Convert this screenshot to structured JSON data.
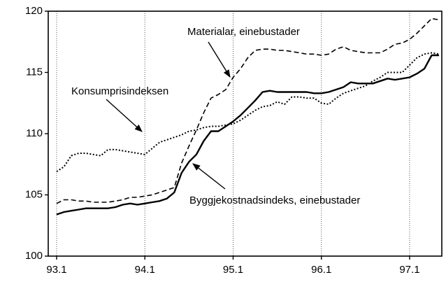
{
  "chart_data": {
    "type": "line",
    "categories": [
      "93.1",
      null,
      null,
      null,
      null,
      null,
      null,
      null,
      null,
      null,
      null,
      null,
      "94.1",
      null,
      null,
      null,
      null,
      null,
      null,
      null,
      null,
      null,
      null,
      null,
      "95.1",
      null,
      null,
      null,
      null,
      null,
      null,
      null,
      null,
      null,
      null,
      null,
      "96.1",
      null,
      null,
      null,
      null,
      null,
      null,
      null,
      null,
      null,
      null,
      null,
      "97.1",
      null,
      null,
      null,
      null
    ],
    "series": [
      {
        "name": "Byggjekostnadsindeks, einebustader",
        "color": "#000000",
        "style": "solid",
        "values": [
          103.4,
          103.6,
          103.7,
          103.8,
          103.9,
          103.9,
          103.9,
          103.9,
          104.0,
          104.2,
          104.3,
          104.2,
          104.3,
          104.4,
          104.5,
          104.7,
          105.2,
          106.8,
          107.7,
          108.3,
          109.4,
          110.2,
          110.2,
          110.6,
          111.0,
          111.5,
          112.1,
          112.7,
          113.4,
          113.5,
          113.4,
          113.4,
          113.4,
          113.4,
          113.4,
          113.3,
          113.3,
          113.4,
          113.6,
          113.8,
          114.2,
          114.1,
          114.1,
          114.1,
          114.3,
          114.5,
          114.4,
          114.5,
          114.6,
          114.9,
          115.3,
          116.4,
          116.4
        ]
      },
      {
        "name": "Materialar, einebustader",
        "color": "#000000",
        "style": "dashed",
        "values": [
          104.3,
          104.6,
          104.6,
          104.5,
          104.5,
          104.4,
          104.4,
          104.4,
          104.5,
          104.6,
          104.8,
          104.8,
          104.9,
          105.0,
          105.2,
          105.4,
          105.6,
          107.6,
          109.0,
          110.3,
          111.7,
          112.9,
          113.2,
          113.6,
          114.6,
          115.3,
          116.2,
          116.8,
          116.9,
          116.9,
          116.8,
          116.8,
          116.7,
          116.6,
          116.5,
          116.5,
          116.4,
          116.5,
          116.9,
          117.1,
          116.8,
          116.7,
          116.6,
          116.6,
          116.6,
          116.9,
          117.3,
          117.4,
          117.7,
          118.2,
          118.8,
          119.4,
          119.3
        ]
      },
      {
        "name": "Konsumprisindeksen",
        "color": "#000000",
        "style": "dotted",
        "values": [
          106.9,
          107.3,
          108.2,
          108.4,
          108.4,
          108.3,
          108.2,
          108.7,
          108.7,
          108.6,
          108.5,
          108.4,
          108.3,
          108.8,
          109.3,
          109.5,
          109.7,
          109.9,
          110.2,
          110.3,
          110.5,
          110.6,
          110.6,
          110.7,
          110.8,
          111.1,
          111.5,
          111.9,
          112.2,
          112.3,
          112.6,
          112.4,
          113.0,
          113.0,
          112.9,
          112.9,
          112.5,
          112.4,
          112.9,
          113.3,
          113.5,
          113.7,
          113.9,
          114.3,
          114.6,
          115.0,
          115.0,
          115.0,
          115.6,
          116.2,
          116.5,
          116.6,
          116.5
        ]
      }
    ],
    "ylim": [
      100,
      120
    ],
    "yticks": [
      100,
      105,
      110,
      115,
      120
    ],
    "xgrid": true,
    "ygrid": false
  }
}
